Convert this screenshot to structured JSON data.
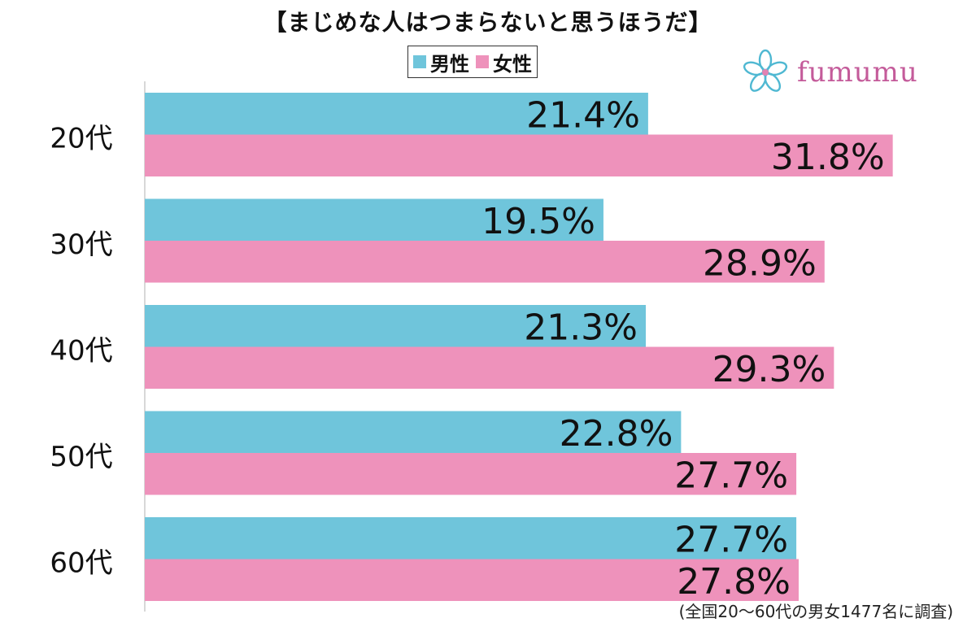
{
  "title": "【まじめな人はつまらないと思うほうだ】",
  "legend": {
    "male": "男性",
    "female": "女性"
  },
  "logo": {
    "text": "fumumu"
  },
  "footnote": "(全国20〜60代の男女1477名に調査)",
  "colors": {
    "male": "#6fc5db",
    "female": "#ee92bb",
    "axis": "#cccccc",
    "brand": "#c45b9a"
  },
  "chart_data": {
    "type": "bar",
    "orientation": "horizontal",
    "categories": [
      "20代",
      "30代",
      "40代",
      "50代",
      "60代"
    ],
    "series": [
      {
        "name": "男性",
        "values": [
          21.4,
          19.5,
          21.3,
          22.8,
          27.7
        ],
        "labels": [
          "21.4%",
          "19.5%",
          "21.3%",
          "22.8%",
          "27.7%"
        ]
      },
      {
        "name": "女性",
        "values": [
          31.8,
          28.9,
          29.3,
          27.7,
          27.8
        ],
        "labels": [
          "31.8%",
          "28.9%",
          "29.3%",
          "27.7%",
          "27.8%"
        ]
      }
    ],
    "xlim": [
      0,
      35
    ],
    "legend_position": "top"
  }
}
